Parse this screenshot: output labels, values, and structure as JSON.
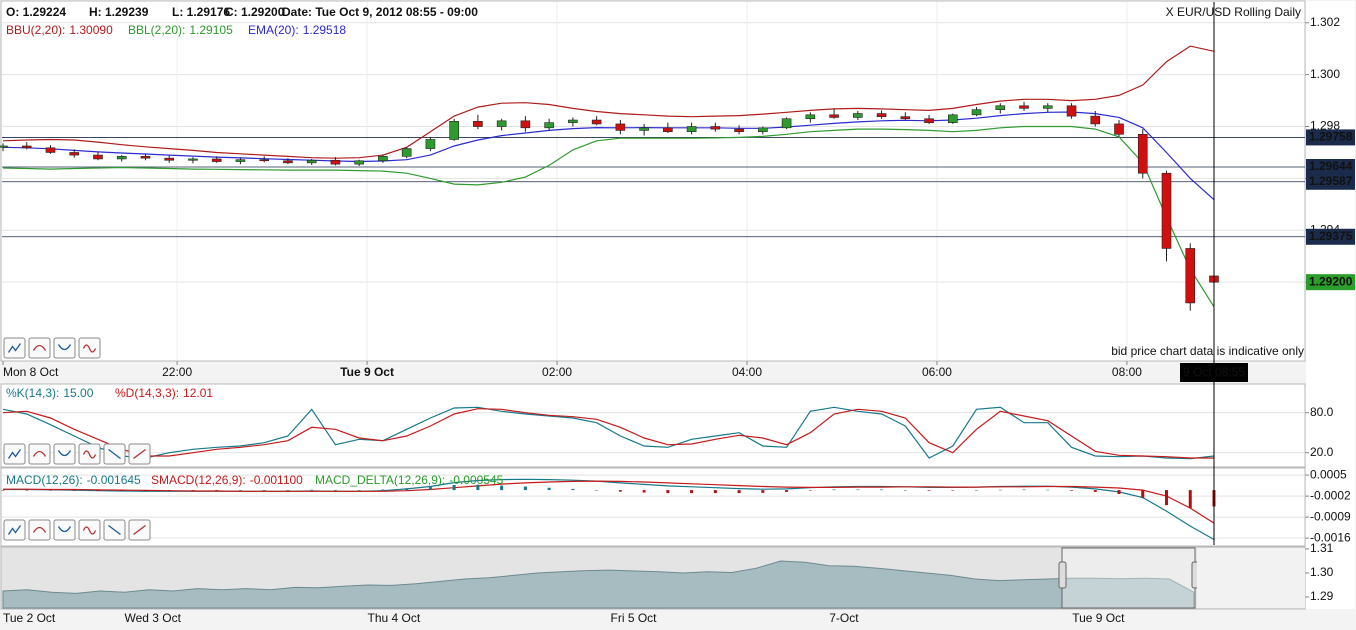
{
  "header": {
    "items": [
      "O: 1.29224",
      "H: 1.29239",
      "L: 1.29176",
      "C: 1.29200",
      "Date: Tue Oct 9, 2012 08:55 - 09:00"
    ],
    "watermark": "X EUR/USD Rolling Daily",
    "disclaimer": "bid price chart data is indicative only"
  },
  "chart_data": [
    {
      "type": "candlestick",
      "up_color": "#2e9b2e",
      "down_color": "#d01010",
      "grid": true,
      "x": [
        "20:10",
        "20:25",
        "20:40",
        "20:55",
        "21:10",
        "21:25",
        "21:40",
        "21:55",
        "22:10",
        "22:25",
        "22:40",
        "22:55",
        "23:10",
        "23:25",
        "23:40",
        "23:55",
        "00:10",
        "00:25",
        "00:40",
        "00:55",
        "01:10",
        "01:25",
        "01:40",
        "01:55",
        "02:10",
        "02:25",
        "02:40",
        "02:55",
        "03:10",
        "03:25",
        "03:40",
        "03:55",
        "04:10",
        "04:25",
        "04:40",
        "04:55",
        "05:10",
        "05:25",
        "05:40",
        "05:55",
        "06:10",
        "06:25",
        "06:40",
        "06:55",
        "07:10",
        "07:25",
        "07:40",
        "07:55",
        "08:10",
        "08:25",
        "08:40",
        "08:55"
      ],
      "ohlc": [
        [
          1.2972,
          1.29735,
          1.29705,
          1.29725
        ],
        [
          1.29725,
          1.2974,
          1.29712,
          1.29718
        ],
        [
          1.29718,
          1.29728,
          1.29695,
          1.297
        ],
        [
          1.297,
          1.29712,
          1.2968,
          1.2969
        ],
        [
          1.2969,
          1.29702,
          1.2967,
          1.29675
        ],
        [
          1.29675,
          1.2969,
          1.29665,
          1.29685
        ],
        [
          1.29685,
          1.29695,
          1.2967,
          1.29678
        ],
        [
          1.29678,
          1.29688,
          1.2966,
          1.2967
        ],
        [
          1.2967,
          1.29682,
          1.29658,
          1.29675
        ],
        [
          1.29675,
          1.29685,
          1.2966,
          1.29665
        ],
        [
          1.29665,
          1.2968,
          1.29655,
          1.29672
        ],
        [
          1.29672,
          1.29685,
          1.29662,
          1.29668
        ],
        [
          1.29668,
          1.29678,
          1.29655,
          1.2966
        ],
        [
          1.2966,
          1.29675,
          1.29652,
          1.2967
        ],
        [
          1.2967,
          1.29682,
          1.2965,
          1.29655
        ],
        [
          1.29655,
          1.29672,
          1.29648,
          1.29668
        ],
        [
          1.29668,
          1.2969,
          1.2966,
          1.29685
        ],
        [
          1.29685,
          1.2972,
          1.29678,
          1.29715
        ],
        [
          1.29715,
          1.2976,
          1.29705,
          1.2975
        ],
        [
          1.2975,
          1.2983,
          1.29745,
          1.2982
        ],
        [
          1.2982,
          1.29845,
          1.2979,
          1.298
        ],
        [
          1.298,
          1.2983,
          1.29785,
          1.29822
        ],
        [
          1.29822,
          1.2984,
          1.2978,
          1.29795
        ],
        [
          1.29795,
          1.2983,
          1.29785,
          1.29815
        ],
        [
          1.29815,
          1.29835,
          1.298,
          1.29825
        ],
        [
          1.29825,
          1.2984,
          1.29805,
          1.2981
        ],
        [
          1.2981,
          1.29825,
          1.2977,
          1.29785
        ],
        [
          1.29785,
          1.2981,
          1.29765,
          1.29795
        ],
        [
          1.29795,
          1.29815,
          1.29775,
          1.2978
        ],
        [
          1.2978,
          1.29815,
          1.2977,
          1.298
        ],
        [
          1.298,
          1.29815,
          1.2978,
          1.2979
        ],
        [
          1.2979,
          1.29805,
          1.2977,
          1.2978
        ],
        [
          1.2978,
          1.298,
          1.2977,
          1.29795
        ],
        [
          1.29795,
          1.29835,
          1.2979,
          1.2983
        ],
        [
          1.2983,
          1.29855,
          1.29815,
          1.29845
        ],
        [
          1.29845,
          1.2987,
          1.2983,
          1.29835
        ],
        [
          1.29835,
          1.2986,
          1.29825,
          1.2985
        ],
        [
          1.2985,
          1.29862,
          1.2983,
          1.29838
        ],
        [
          1.29838,
          1.29855,
          1.29825,
          1.2983
        ],
        [
          1.2983,
          1.29845,
          1.2981,
          1.29815
        ],
        [
          1.29815,
          1.2985,
          1.2981,
          1.29845
        ],
        [
          1.29845,
          1.29875,
          1.2984,
          1.29865
        ],
        [
          1.29865,
          1.2989,
          1.2985,
          1.2988
        ],
        [
          1.2988,
          1.29895,
          1.2986,
          1.2987
        ],
        [
          1.2987,
          1.2989,
          1.29855,
          1.2988
        ],
        [
          1.2988,
          1.2989,
          1.2983,
          1.2984
        ],
        [
          1.2984,
          1.2986,
          1.298,
          1.2981
        ],
        [
          1.2981,
          1.29825,
          1.2976,
          1.2977
        ],
        [
          1.2977,
          1.2979,
          1.296,
          1.2962
        ],
        [
          1.2962,
          1.2963,
          1.2928,
          1.2933
        ],
        [
          1.2933,
          1.2935,
          1.2909,
          1.2912
        ],
        [
          1.29224,
          1.29239,
          1.29176,
          1.292
        ]
      ],
      "series": [
        {
          "name": "BBU(2,20):",
          "last_label": "1.30090",
          "color": "#b01c1c",
          "values": [
            1.29745,
            1.29748,
            1.2975,
            1.29748,
            1.2974,
            1.2973,
            1.29722,
            1.29715,
            1.29708,
            1.297,
            1.29695,
            1.2969,
            1.29685,
            1.2968,
            1.29678,
            1.2968,
            1.2969,
            1.2972,
            1.2978,
            1.2984,
            1.29875,
            1.2989,
            1.29892,
            1.29885,
            1.2987,
            1.29858,
            1.2985,
            1.29845,
            1.2984,
            1.29838,
            1.2984,
            1.29842,
            1.29848,
            1.29855,
            1.29862,
            1.29868,
            1.2987,
            1.29868,
            1.29865,
            1.29862,
            1.2987,
            1.29885,
            1.29898,
            1.29905,
            1.29905,
            1.299,
            1.29905,
            1.2992,
            1.2996,
            1.3005,
            1.3011,
            1.3009
          ]
        },
        {
          "name": "BBL(2,20):",
          "last_label": "1.29105",
          "color": "#2f9a2f",
          "values": [
            1.2964,
            1.29638,
            1.29636,
            1.29638,
            1.2964,
            1.29642,
            1.2964,
            1.29638,
            1.29636,
            1.29635,
            1.29634,
            1.29633,
            1.29632,
            1.29632,
            1.29632,
            1.2963,
            1.29628,
            1.2962,
            1.296,
            1.29578,
            1.29575,
            1.29585,
            1.29605,
            1.2965,
            1.2971,
            1.29745,
            1.29755,
            1.29755,
            1.29755,
            1.29755,
            1.29756,
            1.29758,
            1.29762,
            1.2977,
            1.2978,
            1.29785,
            1.2979,
            1.2979,
            1.29788,
            1.29785,
            1.2978,
            1.29785,
            1.29795,
            1.298,
            1.298,
            1.298,
            1.2979,
            1.2976,
            1.2966,
            1.2945,
            1.2925,
            1.29105
          ]
        },
        {
          "name": "EMA(20):",
          "last_label": "1.29518",
          "color": "#2b2bd0",
          "values": [
            1.2972,
            1.29718,
            1.29714,
            1.29708,
            1.29702,
            1.29698,
            1.29694,
            1.2969,
            1.29686,
            1.29682,
            1.29679,
            1.29676,
            1.29673,
            1.2967,
            1.29667,
            1.29665,
            1.29667,
            1.29672,
            1.2969,
            1.29725,
            1.29748,
            1.29765,
            1.29775,
            1.29785,
            1.29792,
            1.29796,
            1.29795,
            1.29796,
            1.29795,
            1.29795,
            1.29795,
            1.29793,
            1.29793,
            1.29798,
            1.29805,
            1.29812,
            1.29818,
            1.29822,
            1.29824,
            1.29822,
            1.29825,
            1.29832,
            1.29842,
            1.2985,
            1.29855,
            1.29856,
            1.2985,
            1.29835,
            1.29795,
            1.297,
            1.296,
            1.29518
          ]
        }
      ],
      "ylim": [
        1.289,
        1.3028
      ],
      "yticks": [
        1.302,
        {
          "value": 1.3,
          "label": "1.300"
        },
        {
          "value": 1.298,
          "label": "1.298"
        },
        {
          "value": 1.296,
          "label": "1.296"
        },
        {
          "value": 1.294,
          "label": "1.294"
        },
        {
          "value": 1.292,
          "label": "1.292"
        }
      ],
      "xticks": [
        {
          "value": "20:10",
          "label": "Mon 8 Oct"
        },
        "22:00",
        {
          "value": "00:00",
          "label": "Tue 9 Oct",
          "bold": true
        },
        "02:00",
        "04:00",
        "06:00",
        "08:00"
      ],
      "levels": [
        1.29758,
        1.29644,
        1.29587,
        1.29375,
        {
          "value": 1.292,
          "label": "1.29200",
          "color": "#2a9d2a"
        }
      ],
      "level_color": "#1b2b4b",
      "cursor": {
        "x": "08:55",
        "label": "9 Oct 08:55"
      }
    },
    {
      "type": "line",
      "grid": true,
      "series": [
        {
          "name": "%K(14,3):",
          "last_label": "15.00",
          "color": "#16798a",
          "values": [
            85,
            78,
            62,
            45,
            28,
            15,
            12,
            20,
            25,
            28,
            30,
            35,
            45,
            85,
            32,
            40,
            38,
            55,
            72,
            87,
            88,
            82,
            78,
            75,
            72,
            65,
            45,
            30,
            28,
            40,
            45,
            50,
            30,
            28,
            82,
            88,
            82,
            78,
            60,
            12,
            30,
            85,
            88,
            65,
            65,
            28,
            15,
            14,
            15,
            12,
            11,
            15
          ]
        },
        {
          "name": "%D(14,3,3):",
          "last_label": "12.01",
          "color": "#c41a1a",
          "values": [
            80,
            82,
            72,
            55,
            40,
            25,
            15,
            15,
            20,
            25,
            28,
            32,
            38,
            58,
            55,
            42,
            38,
            45,
            60,
            78,
            86,
            85,
            80,
            76,
            74,
            70,
            58,
            42,
            32,
            33,
            40,
            46,
            42,
            32,
            50,
            78,
            85,
            82,
            72,
            35,
            20,
            55,
            82,
            75,
            68,
            45,
            22,
            16,
            15,
            14,
            12,
            12.01
          ]
        }
      ],
      "ylim": [
        0,
        120
      ],
      "yticks": [
        {
          "value": 80,
          "label": "80.0"
        },
        {
          "value": 20,
          "label": "20.0"
        }
      ]
    },
    {
      "type": "line",
      "grid": true,
      "series": [
        {
          "name": "MACD(12,26):",
          "last_label": "-0.001645",
          "color": "#16798a",
          "values": [
            2e-05,
            2e-05,
            1e-05,
            0,
            -2e-05,
            -3e-05,
            -4e-05,
            -4e-05,
            -4e-05,
            -4e-05,
            -4e-05,
            -4e-05,
            -4e-05,
            -3e-05,
            -4e-05,
            -4e-05,
            -2e-05,
            4e-05,
            0.00012,
            0.00025,
            0.00032,
            0.00035,
            0.00036,
            0.00035,
            0.00033,
            0.0003,
            0.00024,
            0.00019,
            0.00014,
            0.00011,
            8e-05,
            5e-05,
            3e-05,
            4e-05,
            8e-05,
            0.00011,
            0.00012,
            0.00012,
            0.00011,
            9e-05,
            9e-05,
            0.0001,
            0.00012,
            0.00013,
            0.00013,
            0.0001,
            4e-05,
            -6e-05,
            -0.00025,
            -0.0007,
            -0.0012,
            -0.001645
          ]
        },
        {
          "name": "SMACD(12,26,9):",
          "last_label": "-0.001100",
          "color": "#c41a1a",
          "values": [
            3e-05,
            3e-05,
            2e-05,
            2e-05,
            1e-05,
            0,
            -1e-05,
            -2e-05,
            -3e-05,
            -3e-05,
            -4e-05,
            -4e-05,
            -4e-05,
            -4e-05,
            -4e-05,
            -4e-05,
            -4e-05,
            -2e-05,
            2e-05,
            8e-05,
            0.00014,
            0.0002,
            0.00024,
            0.00027,
            0.00029,
            0.0003,
            0.00029,
            0.00027,
            0.00024,
            0.00021,
            0.00018,
            0.00015,
            0.00012,
            0.0001,
            9e-05,
            9e-05,
            0.0001,
            0.0001,
            0.00011,
            0.00011,
            0.0001,
            0.0001,
            0.00011,
            0.00011,
            0.00012,
            0.00012,
            0.0001,
            7e-05,
            0,
            -0.0002,
            -0.0006,
            -0.0011
          ]
        },
        {
          "name": "MACD_DELTA(12,26,9):",
          "last_label": "-0.000545",
          "color": "#2a9d2a",
          "style": "bar",
          "bar_color": "#16798a",
          "negative_color": "#b01010",
          "values": [
            -1e-05,
            -1e-05,
            -1e-05,
            -2e-05,
            -3e-05,
            -3e-05,
            -3e-05,
            -2e-05,
            -1e-05,
            -1e-05,
            0,
            0,
            0,
            1e-05,
            0,
            0,
            2e-05,
            6e-05,
            0.0001,
            0.00017,
            0.00018,
            0.00015,
            0.00012,
            8e-05,
            4e-05,
            0,
            -5e-05,
            -8e-05,
            -0.0001,
            -0.0001,
            -0.0001,
            -0.0001,
            -9e-05,
            -6e-05,
            -1e-05,
            2e-05,
            2e-05,
            2e-05,
            0,
            -2e-05,
            -1e-05,
            0,
            1e-05,
            2e-05,
            1e-05,
            -2e-05,
            -6e-05,
            -0.00013,
            -0.00025,
            -0.0005,
            -0.0006,
            -0.000545
          ]
        }
      ],
      "ylim": [
        -0.00183,
        0.00067
      ],
      "yticks": [
        0.0005,
        -0.0002,
        -0.0009,
        -0.0016
      ]
    },
    {
      "type": "area",
      "color": "#a6bcc0",
      "line_color": "#6d8a90",
      "categories": [
        "Tue 2 Oct",
        null,
        null,
        null,
        null,
        "Wed 3 Oct",
        null,
        null,
        null,
        null,
        null,
        null,
        null,
        null,
        null,
        "Thu 4 Oct",
        null,
        null,
        null,
        null,
        null,
        null,
        null,
        null,
        null,
        "Fri 5 Oct",
        null,
        null,
        null,
        null,
        null,
        null,
        null,
        null,
        "7-Oct",
        null,
        null,
        null,
        null,
        null,
        null,
        null,
        null,
        null,
        "Tue 9 Oct",
        null,
        null,
        null,
        null,
        null
      ],
      "values": [
        1.2925,
        1.293,
        1.292,
        1.2915,
        1.2925,
        1.292,
        1.293,
        1.2925,
        1.2935,
        1.293,
        1.2935,
        1.293,
        1.294,
        1.2938,
        1.2945,
        1.295,
        1.2948,
        1.2955,
        1.2965,
        1.2975,
        1.298,
        1.299,
        1.3,
        1.3005,
        1.301,
        1.3012,
        1.3008,
        1.3005,
        1.3,
        1.3005,
        1.3002,
        1.302,
        1.305,
        1.3045,
        1.303,
        1.3028,
        1.302,
        1.301,
        1.3,
        1.299,
        1.2975,
        1.2968,
        1.2972,
        1.2975,
        1.2978,
        1.2978,
        1.2976,
        1.2978,
        1.2975,
        1.292
      ],
      "ylim": [
        1.2854,
        1.3104
      ],
      "yticks": [
        1.31,
        {
          "value": 1.3,
          "label": "1.30"
        },
        1.29
      ]
    }
  ]
}
